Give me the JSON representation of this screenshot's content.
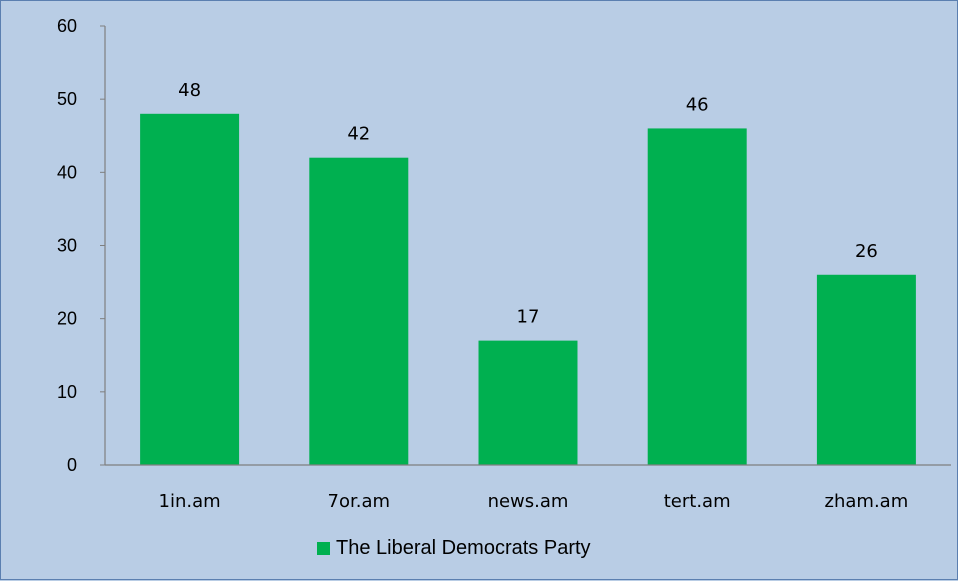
{
  "chart_data": {
    "type": "bar",
    "categories": [
      "1in.am",
      "7or.am",
      "news.am",
      "tert.am",
      "zham.am"
    ],
    "series": [
      {
        "name": "The Liberal Democrats Party",
        "values": [
          48,
          42,
          17,
          46,
          26
        ],
        "color": "#00b050"
      }
    ],
    "ylim": [
      0,
      60
    ],
    "yticks": [
      "0",
      "10",
      "20",
      "30",
      "40",
      "50",
      "60"
    ],
    "grid": false,
    "legend_position": "bottom",
    "background_color": "#b9cde5",
    "axis_color": "#7f7f7f"
  }
}
